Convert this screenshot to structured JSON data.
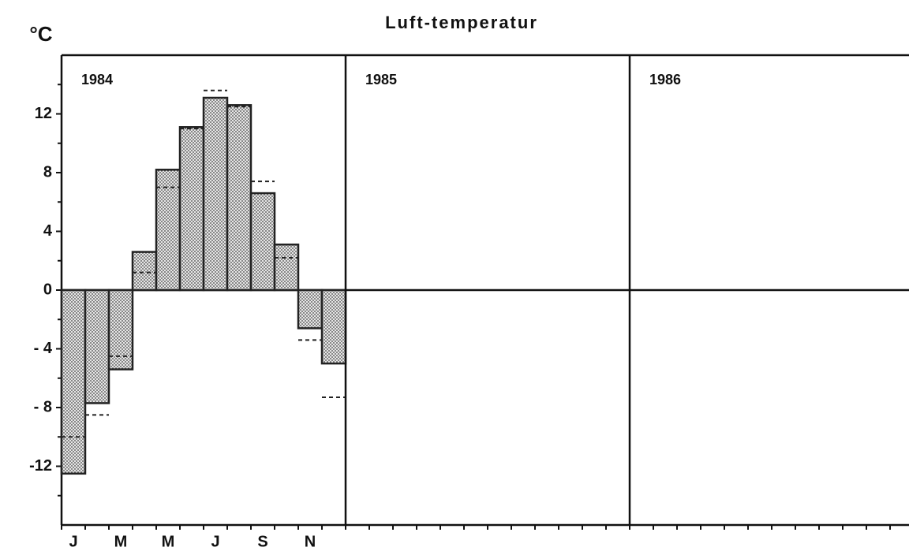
{
  "chart_data": {
    "type": "bar",
    "title": "Luft-temperatur",
    "y_label": "°C",
    "ylim": [
      -16,
      16
    ],
    "yticks": [
      {
        "value": -12,
        "label": "-12"
      },
      {
        "value": -8,
        "label": "- 8"
      },
      {
        "value": -4,
        "label": "- 4"
      },
      0,
      4,
      8,
      12
    ],
    "yminorticks": [
      -14,
      -10,
      -6,
      -2,
      2,
      6,
      10,
      14
    ],
    "categories": [
      "J",
      null,
      "M",
      null,
      "M",
      null,
      "J",
      null,
      "S",
      null,
      "N",
      null
    ],
    "color": "#222222",
    "panels": [
      {
        "label": "1984",
        "series": [
          {
            "style": "bar",
            "values": [
              -12.5,
              -7.7,
              -5.4,
              2.6,
              8.2,
              11.1,
              13.1,
              12.6,
              6.6,
              3.1,
              -2.6,
              -5.0
            ]
          },
          {
            "style": "dashed",
            "values": [
              -10.0,
              -8.5,
              -4.5,
              1.2,
              7.0,
              11.0,
              13.6,
              12.5,
              7.4,
              2.2,
              -3.4,
              -7.3
            ]
          }
        ]
      },
      {
        "label": "1985",
        "series": []
      },
      {
        "label": "1986",
        "series": []
      }
    ]
  }
}
